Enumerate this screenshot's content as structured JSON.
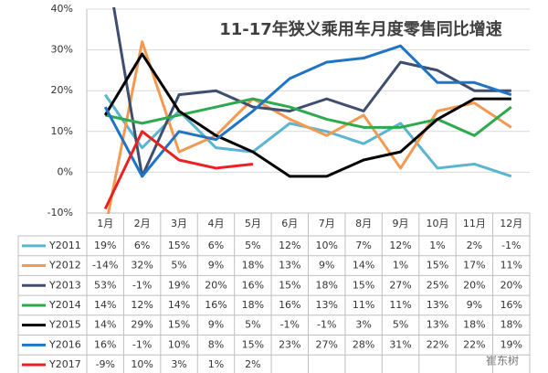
{
  "chart_data": {
    "type": "line",
    "title": "11-17年狭义乘用车月度零售同比增速",
    "categories": [
      "1月",
      "2月",
      "3月",
      "4月",
      "5月",
      "6月",
      "7月",
      "8月",
      "9月",
      "10月",
      "11月",
      "12月"
    ],
    "ylim": [
      -10,
      40
    ],
    "yticks": [
      {
        "value": -10,
        "label": "-10%"
      },
      {
        "value": 0,
        "label": "0%"
      },
      {
        "value": 10,
        "label": "10%"
      },
      {
        "value": 20,
        "label": "20%"
      },
      {
        "value": 30,
        "label": "30%"
      },
      {
        "value": 40,
        "label": "40%"
      }
    ],
    "grid": true,
    "series": [
      {
        "name": "Y2011",
        "color": "#5bb5d1",
        "values": [
          19,
          6,
          15,
          6,
          5,
          12,
          10,
          7,
          12,
          1,
          2,
          -1
        ],
        "value_labels": [
          "19%",
          "6%",
          "15%",
          "6%",
          "5%",
          "12%",
          "10%",
          "7%",
          "12%",
          "1%",
          "2%",
          "-1%"
        ]
      },
      {
        "name": "Y2012",
        "color": "#f39a52",
        "values": [
          -14,
          32,
          5,
          9,
          18,
          13,
          9,
          14,
          1,
          15,
          17,
          11
        ],
        "value_labels": [
          "-14%",
          "32%",
          "5%",
          "9%",
          "18%",
          "13%",
          "9%",
          "14%",
          "1%",
          "15%",
          "17%",
          "11%"
        ]
      },
      {
        "name": "Y2013",
        "color": "#3d4e6e",
        "values": [
          53,
          -1,
          19,
          20,
          16,
          15,
          18,
          15,
          27,
          25,
          20,
          20
        ],
        "value_labels": [
          "53%",
          "-1%",
          "19%",
          "20%",
          "16%",
          "15%",
          "18%",
          "15%",
          "27%",
          "25%",
          "20%",
          "20%"
        ]
      },
      {
        "name": "Y2014",
        "color": "#2eaa4e",
        "values": [
          14,
          12,
          14,
          16,
          18,
          16,
          13,
          11,
          11,
          13,
          9,
          16
        ],
        "value_labels": [
          "14%",
          "12%",
          "14%",
          "16%",
          "18%",
          "16%",
          "13%",
          "11%",
          "11%",
          "13%",
          "9%",
          "16%"
        ]
      },
      {
        "name": "Y2015",
        "color": "#000000",
        "values": [
          14,
          29,
          15,
          9,
          5,
          -1,
          -1,
          3,
          5,
          13,
          18,
          18
        ],
        "value_labels": [
          "14%",
          "29%",
          "15%",
          "9%",
          "5%",
          "-1%",
          "-1%",
          "3%",
          "5%",
          "13%",
          "18%",
          "18%"
        ]
      },
      {
        "name": "Y2016",
        "color": "#1f74c6",
        "values": [
          16,
          -1,
          10,
          8,
          15,
          23,
          27,
          28,
          31,
          22,
          22,
          19
        ],
        "value_labels": [
          "16%",
          "-1%",
          "10%",
          "8%",
          "15%",
          "23%",
          "27%",
          "28%",
          "31%",
          "22%",
          "22%",
          "19%"
        ]
      },
      {
        "name": "Y2017",
        "color": "#e8231f",
        "values": [
          -9,
          10,
          3,
          1,
          2,
          null,
          null,
          null,
          null,
          null,
          null,
          null
        ],
        "value_labels": [
          "-9%",
          "10%",
          "3%",
          "1%",
          "2%",
          null,
          null,
          null,
          null,
          null,
          null,
          null
        ]
      }
    ]
  },
  "watermark": "崔东树"
}
